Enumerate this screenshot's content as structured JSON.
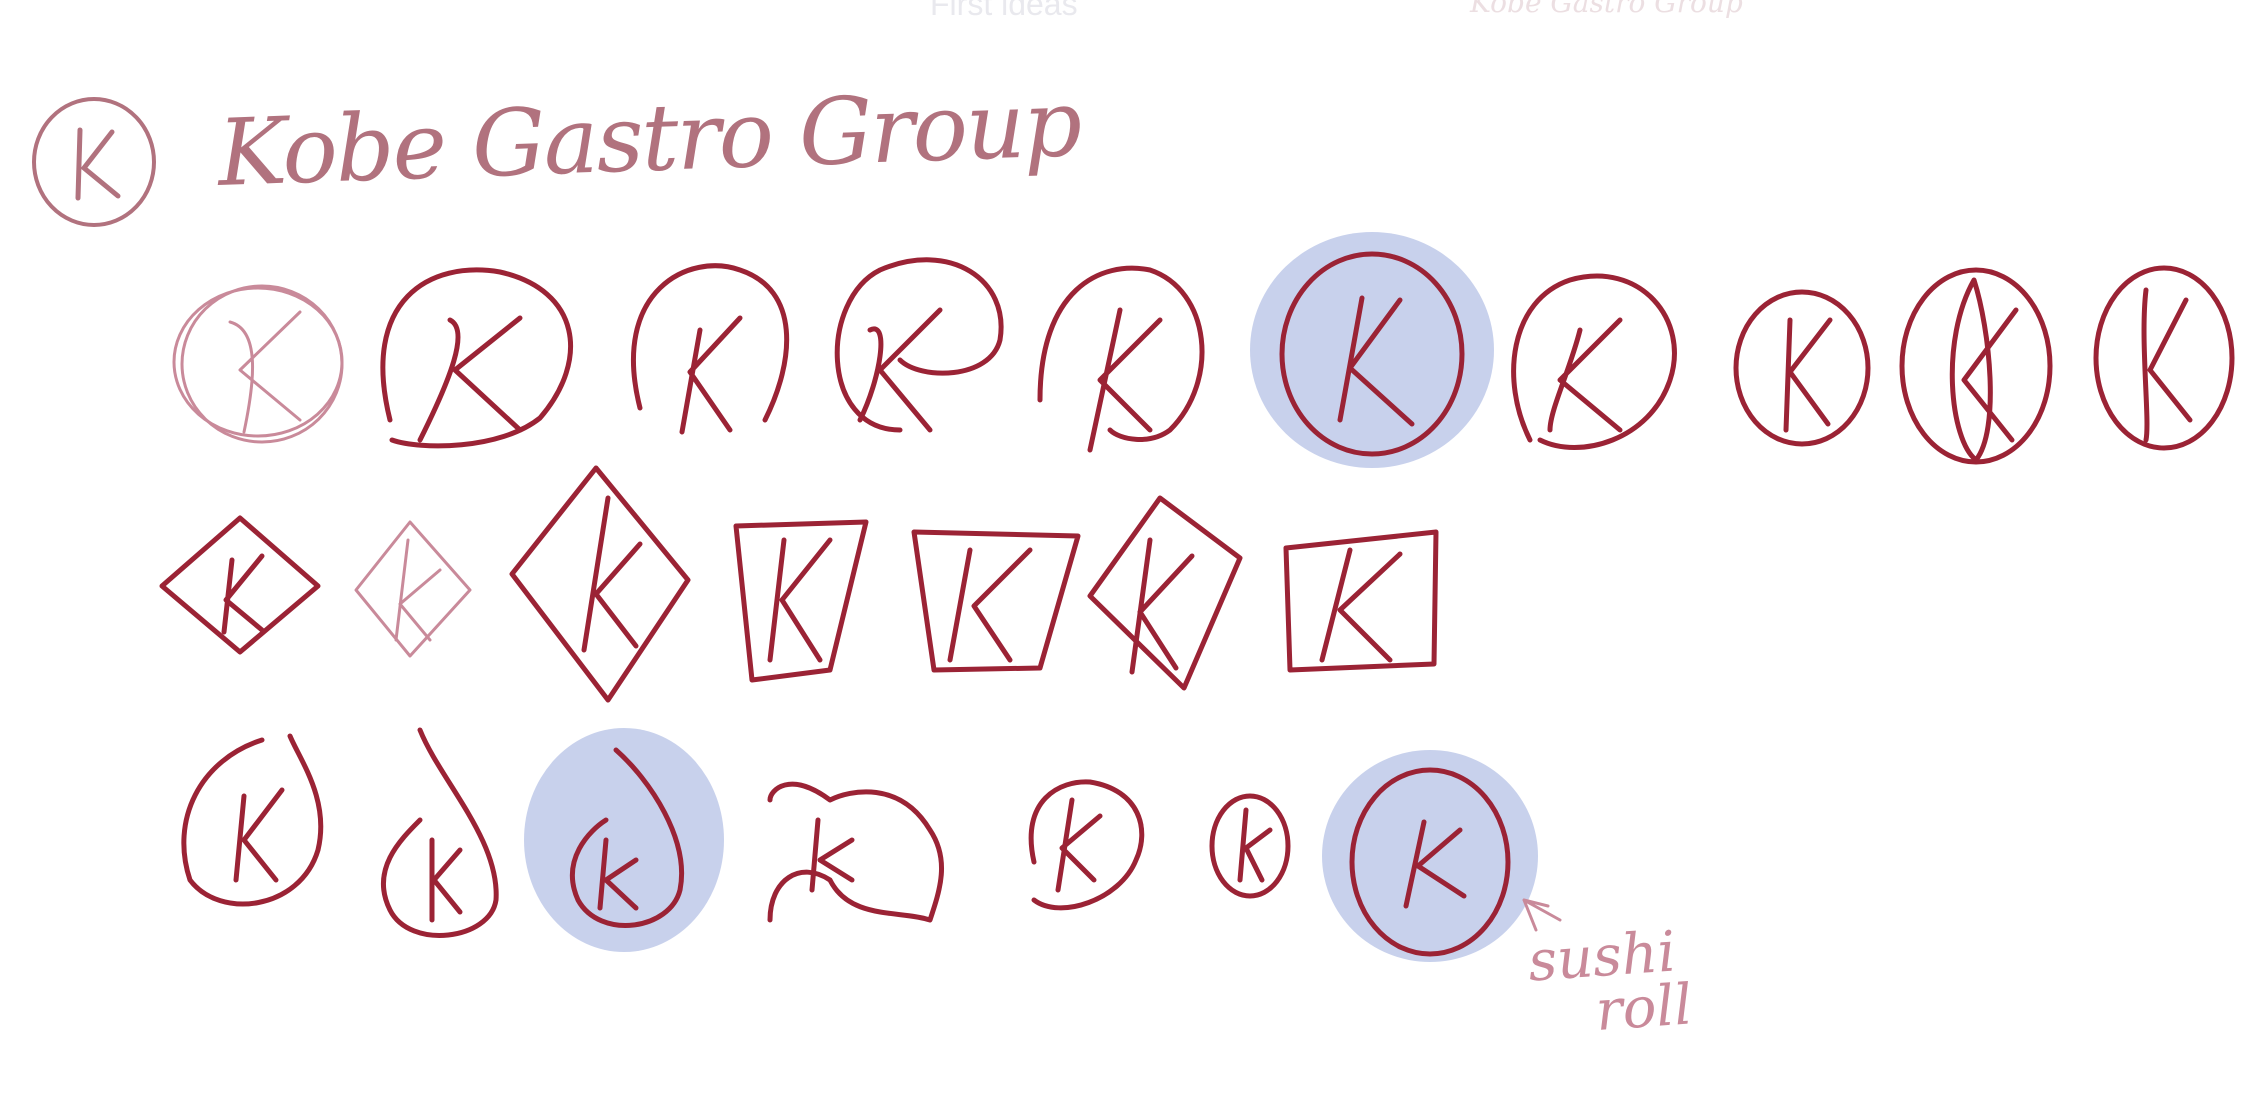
{
  "page": {
    "faint_title": "First ideas",
    "faint_brand": "Kobe Gastro Group",
    "brand_name": "Kobe Gastro Group",
    "annotation_line1": "sushi",
    "annotation_line2": "roll",
    "colors": {
      "ink": "#9b2335",
      "ink_light": "#c98a9a",
      "highlight": "#b6c2e6",
      "background": "#ffffff"
    }
  },
  "sketches": {
    "circle_row": {
      "count": 10,
      "highlighted_index": 5,
      "label": "K"
    },
    "diamond_row": {
      "count": 7,
      "label": "K"
    },
    "drop_row": {
      "count": 7,
      "highlighted_indices": [
        2,
        6
      ],
      "label": "K"
    }
  }
}
